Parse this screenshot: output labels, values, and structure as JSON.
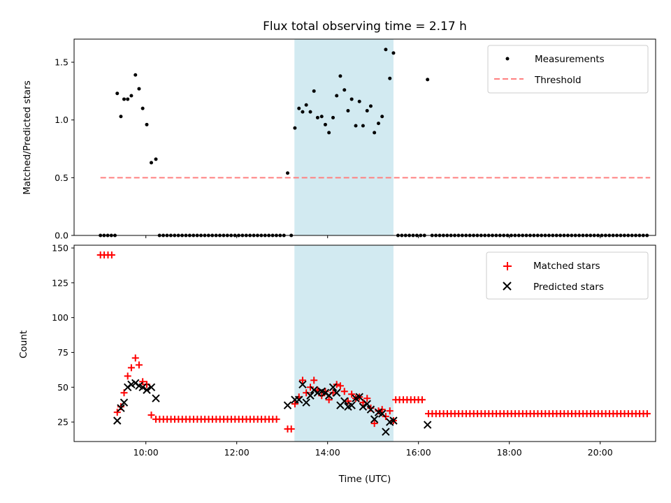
{
  "title": "Flux total observing time = 2.17 h",
  "colors": {
    "measurement": "#000000",
    "threshold": "#ff8080",
    "matched": "#ff0000",
    "predicted": "#000000",
    "highlight": "#add8e6"
  },
  "chart_data": [
    {
      "type": "scatter",
      "ylabel": "Matched/Predicted stars",
      "xlim": [
        8.42,
        21.22
      ],
      "ylim": [
        0,
        1.7
      ],
      "yticks": [
        0.0,
        0.5,
        1.0,
        1.5
      ],
      "ytick_labels": [
        "0.0",
        "0.5",
        "1.0",
        "1.5"
      ],
      "grid": false,
      "legend": {
        "placement": "upper right",
        "entries": [
          "Measurements",
          "Threshold"
        ]
      },
      "highlight_span": [
        13.27,
        15.45
      ],
      "threshold": {
        "name": "Threshold",
        "value": 0.5,
        "x_range": [
          9.0,
          21.1
        ]
      },
      "series": [
        {
          "name": "Measurements",
          "points": [
            [
              9.37,
              1.23
            ],
            [
              9.45,
              1.03
            ],
            [
              9.52,
              1.18
            ],
            [
              9.6,
              1.18
            ],
            [
              9.68,
              1.21
            ],
            [
              9.77,
              1.39
            ],
            [
              9.85,
              1.27
            ],
            [
              9.93,
              1.1
            ],
            [
              10.02,
              0.96
            ],
            [
              10.12,
              0.63
            ],
            [
              10.22,
              0.66
            ],
            [
              13.12,
              0.54
            ],
            [
              13.28,
              0.93
            ],
            [
              13.37,
              1.1
            ],
            [
              13.45,
              1.07
            ],
            [
              13.53,
              1.13
            ],
            [
              13.62,
              1.07
            ],
            [
              13.7,
              1.25
            ],
            [
              13.78,
              1.02
            ],
            [
              13.87,
              1.03
            ],
            [
              13.95,
              0.96
            ],
            [
              14.03,
              0.89
            ],
            [
              14.12,
              1.02
            ],
            [
              14.2,
              1.21
            ],
            [
              14.28,
              1.38
            ],
            [
              14.37,
              1.26
            ],
            [
              14.45,
              1.08
            ],
            [
              14.53,
              1.18
            ],
            [
              14.62,
              0.95
            ],
            [
              14.7,
              1.16
            ],
            [
              14.78,
              0.95
            ],
            [
              14.87,
              1.08
            ],
            [
              14.95,
              1.12
            ],
            [
              15.03,
              0.89
            ],
            [
              15.12,
              0.97
            ],
            [
              15.2,
              1.03
            ],
            [
              15.28,
              1.61
            ],
            [
              15.37,
              1.36
            ],
            [
              15.45,
              1.58
            ],
            [
              16.2,
              1.35
            ]
          ],
          "zero_ranges": [
            [
              9.0,
              9.32,
              0.08
            ],
            [
              10.3,
              13.05,
              0.083
            ],
            [
              13.2,
              13.2,
              0.1
            ],
            [
              15.55,
              16.15,
              0.083
            ],
            [
              16.3,
              21.1,
              0.083
            ]
          ]
        }
      ]
    },
    {
      "type": "scatter",
      "xlabel": "Time (UTC)",
      "ylabel": "Count",
      "xlim": [
        8.42,
        21.22
      ],
      "ylim": [
        11,
        152
      ],
      "yticks": [
        25,
        50,
        75,
        100,
        125,
        150
      ],
      "ytick_labels": [
        "25",
        "50",
        "75",
        "100",
        "125",
        "150"
      ],
      "xticks": [
        10,
        12,
        14,
        16,
        18,
        20
      ],
      "xtick_labels": [
        "10:00",
        "12:00",
        "14:00",
        "16:00",
        "18:00",
        "20:00"
      ],
      "grid": false,
      "legend": {
        "placement": "upper right",
        "entries": [
          "Matched stars",
          "Predicted stars"
        ]
      },
      "highlight_span": [
        13.27,
        15.45
      ],
      "series": [
        {
          "name": "Matched stars",
          "marker": "plus",
          "points": [
            [
              9.37,
              32
            ],
            [
              9.45,
              36
            ],
            [
              9.52,
              46
            ],
            [
              9.6,
              58
            ],
            [
              9.68,
              64
            ],
            [
              9.77,
              71
            ],
            [
              9.85,
              66
            ],
            [
              9.93,
              54
            ],
            [
              10.02,
              52
            ],
            [
              10.12,
              30
            ],
            [
              13.12,
              20
            ],
            [
              13.2,
              20
            ],
            [
              13.28,
              38
            ],
            [
              13.37,
              43
            ],
            [
              13.45,
              55
            ],
            [
              13.53,
              46
            ],
            [
              13.62,
              50
            ],
            [
              13.7,
              55
            ],
            [
              13.78,
              48
            ],
            [
              13.87,
              44
            ],
            [
              13.95,
              47
            ],
            [
              14.03,
              41
            ],
            [
              14.12,
              46
            ],
            [
              14.2,
              52
            ],
            [
              14.28,
              51
            ],
            [
              14.37,
              47
            ],
            [
              14.45,
              40
            ],
            [
              14.53,
              45
            ],
            [
              14.62,
              42
            ],
            [
              14.7,
              43
            ],
            [
              14.78,
              39
            ],
            [
              14.87,
              42
            ],
            [
              14.95,
              35
            ],
            [
              15.03,
              24
            ],
            [
              15.12,
              33
            ],
            [
              15.2,
              34
            ],
            [
              15.28,
              29
            ],
            [
              15.37,
              33
            ],
            [
              15.45,
              26
            ]
          ],
          "constant_ranges": [
            [
              9.0,
              9.32,
              145
            ],
            [
              10.22,
              12.95,
              27
            ],
            [
              15.5,
              16.15,
              41
            ],
            [
              16.22,
              21.1,
              31
            ]
          ]
        },
        {
          "name": "Predicted stars",
          "marker": "x",
          "points": [
            [
              9.37,
              26
            ],
            [
              9.45,
              35
            ],
            [
              9.52,
              39
            ],
            [
              9.6,
              50
            ],
            [
              9.68,
              52
            ],
            [
              9.77,
              53
            ],
            [
              9.85,
              51
            ],
            [
              9.93,
              50
            ],
            [
              10.02,
              48
            ],
            [
              10.12,
              50
            ],
            [
              10.22,
              42
            ],
            [
              13.12,
              37
            ],
            [
              13.28,
              41
            ],
            [
              13.37,
              41
            ],
            [
              13.45,
              52
            ],
            [
              13.53,
              39
            ],
            [
              13.62,
              44
            ],
            [
              13.7,
              48
            ],
            [
              13.78,
              46
            ],
            [
              13.87,
              47
            ],
            [
              13.95,
              46
            ],
            [
              14.03,
              44
            ],
            [
              14.12,
              50
            ],
            [
              14.2,
              46
            ],
            [
              14.28,
              37
            ],
            [
              14.37,
              40
            ],
            [
              14.45,
              36
            ],
            [
              14.53,
              37
            ],
            [
              14.62,
              42
            ],
            [
              14.7,
              43
            ],
            [
              14.78,
              36
            ],
            [
              14.87,
              38
            ],
            [
              14.95,
              34
            ],
            [
              15.03,
              27
            ],
            [
              15.12,
              32
            ],
            [
              15.2,
              31
            ],
            [
              15.28,
              18
            ],
            [
              15.37,
              25
            ],
            [
              15.45,
              26
            ],
            [
              16.2,
              23
            ]
          ]
        }
      ]
    }
  ]
}
